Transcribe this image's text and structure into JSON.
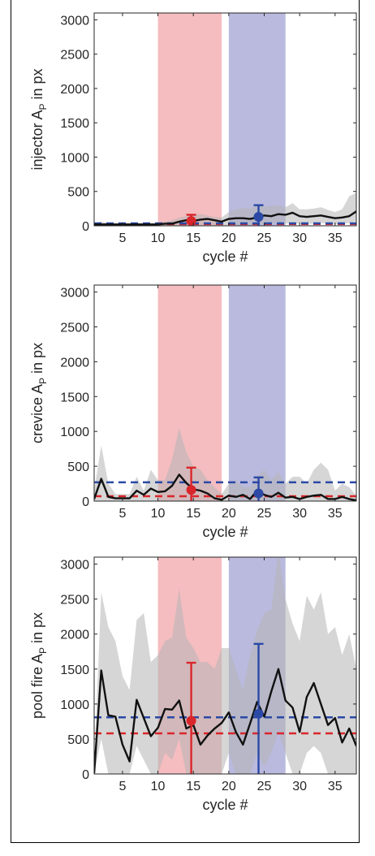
{
  "colors": {
    "red_band": "#f4b6b9",
    "blue_band": "#b3b3dc",
    "red_series": "#d9262b",
    "blue_series": "#2b49a5",
    "grey_band": "#b4b4b4",
    "mean_line": "#111111"
  },
  "chart_data": [
    {
      "type": "line",
      "ylabel": "injector A",
      "ylabel_sub": "P",
      "ylabel_unit": " in px",
      "xlabel": "cycle #",
      "xlim": [
        1,
        38
      ],
      "ylim": [
        0,
        3100
      ],
      "xticks": [
        5,
        10,
        15,
        20,
        25,
        30,
        35
      ],
      "yticks": [
        0,
        500,
        1000,
        1500,
        2000,
        2500,
        3000
      ],
      "highlight_red": [
        10,
        19
      ],
      "highlight_blue": [
        20,
        28
      ],
      "mean": [
        20,
        20,
        20,
        20,
        20,
        20,
        20,
        20,
        20,
        20,
        30,
        30,
        60,
        80,
        70,
        90,
        100,
        80,
        60,
        100,
        110,
        110,
        100,
        120,
        150,
        140,
        170,
        160,
        190,
        140,
        130,
        140,
        150,
        130,
        110,
        120,
        140,
        210
      ],
      "upper": [
        40,
        60,
        40,
        30,
        40,
        30,
        40,
        30,
        30,
        40,
        60,
        80,
        120,
        140,
        160,
        170,
        150,
        130,
        120,
        200,
        240,
        260,
        250,
        300,
        280,
        290,
        300,
        270,
        330,
        240,
        240,
        250,
        270,
        230,
        200,
        240,
        430,
        480
      ],
      "lower": [
        0,
        0,
        0,
        0,
        0,
        0,
        0,
        0,
        0,
        0,
        0,
        0,
        0,
        0,
        0,
        10,
        10,
        0,
        0,
        10,
        10,
        10,
        10,
        20,
        30,
        30,
        40,
        30,
        40,
        30,
        30,
        30,
        40,
        30,
        20,
        30,
        40,
        60
      ],
      "red_marker": {
        "x": 14.7,
        "y": 70,
        "err_low": 0,
        "err_high": 160
      },
      "blue_marker": {
        "x": 24.2,
        "y": 130,
        "err_low": 0,
        "err_high": 300
      },
      "red_dashed": 25,
      "blue_dashed": 35
    },
    {
      "type": "line",
      "ylabel": "crevice A",
      "ylabel_sub": "P",
      "ylabel_unit": " in px",
      "xlabel": "cycle #",
      "xlim": [
        1,
        38
      ],
      "ylim": [
        0,
        3100
      ],
      "xticks": [
        5,
        10,
        15,
        20,
        25,
        30,
        35
      ],
      "yticks": [
        0,
        500,
        1000,
        1500,
        2000,
        2500,
        3000
      ],
      "highlight_red": [
        10,
        19
      ],
      "highlight_blue": [
        20,
        28
      ],
      "mean": [
        30,
        320,
        60,
        40,
        40,
        40,
        150,
        90,
        180,
        130,
        140,
        220,
        380,
        260,
        170,
        150,
        110,
        40,
        20,
        80,
        60,
        90,
        30,
        150,
        90,
        60,
        120,
        50,
        60,
        30,
        60,
        80,
        90,
        30,
        30,
        60,
        30,
        10
      ],
      "upper": [
        150,
        800,
        250,
        100,
        100,
        100,
        350,
        150,
        450,
        300,
        300,
        600,
        1050,
        700,
        500,
        450,
        300,
        200,
        100,
        250,
        300,
        200,
        200,
        350,
        450,
        300,
        420,
        250,
        350,
        350,
        250,
        450,
        550,
        450,
        150,
        250,
        200,
        80
      ],
      "lower": [
        0,
        0,
        0,
        0,
        0,
        0,
        0,
        0,
        0,
        0,
        0,
        0,
        0,
        0,
        0,
        0,
        0,
        0,
        0,
        0,
        0,
        0,
        0,
        0,
        0,
        0,
        0,
        0,
        0,
        0,
        0,
        0,
        0,
        0,
        0,
        0,
        0,
        0
      ],
      "red_marker": {
        "x": 14.7,
        "y": 160,
        "err_low": 0,
        "err_high": 480
      },
      "blue_marker": {
        "x": 24.2,
        "y": 110,
        "err_low": 0,
        "err_high": 340
      },
      "red_dashed": 70,
      "blue_dashed": 270
    },
    {
      "type": "line",
      "ylabel": "pool fire A",
      "ylabel_sub": "P",
      "ylabel_unit": " in px",
      "xlabel": "cycle #",
      "xlim": [
        1,
        38
      ],
      "ylim": [
        0,
        3100
      ],
      "xticks": [
        5,
        10,
        15,
        20,
        25,
        30,
        35
      ],
      "yticks": [
        0,
        500,
        1000,
        1500,
        2000,
        2500,
        3000
      ],
      "highlight_red": [
        10,
        19
      ],
      "highlight_blue": [
        20,
        28
      ],
      "mean": [
        10,
        1480,
        840,
        820,
        420,
        180,
        1060,
        800,
        540,
        660,
        930,
        920,
        1050,
        650,
        700,
        420,
        550,
        650,
        730,
        880,
        600,
        420,
        720,
        1030,
        820,
        1180,
        1500,
        1050,
        950,
        600,
        1100,
        1300,
        1000,
        700,
        800,
        450,
        650,
        400
      ],
      "upper": [
        100,
        2600,
        2100,
        1900,
        1400,
        1200,
        2200,
        2300,
        1600,
        1700,
        1900,
        1950,
        2650,
        1950,
        1800,
        1600,
        1600,
        1500,
        1800,
        1800,
        1500,
        1200,
        1700,
        2050,
        2300,
        2350,
        3200,
        2500,
        2150,
        1900,
        2550,
        2350,
        2600,
        2000,
        2100,
        1700,
        2000,
        1500
      ],
      "lower": [
        0,
        500,
        0,
        0,
        0,
        0,
        400,
        200,
        0,
        0,
        300,
        200,
        500,
        0,
        0,
        0,
        0,
        0,
        0,
        300,
        0,
        0,
        0,
        300,
        100,
        300,
        600,
        300,
        0,
        0,
        300,
        400,
        300,
        0,
        0,
        0,
        0,
        0
      ],
      "red_marker": {
        "x": 14.7,
        "y": 760,
        "err_low": 0,
        "err_high": 1590
      },
      "blue_marker": {
        "x": 24.2,
        "y": 860,
        "err_low": 0,
        "err_high": 1860
      },
      "red_dashed": 580,
      "blue_dashed": 810
    }
  ]
}
